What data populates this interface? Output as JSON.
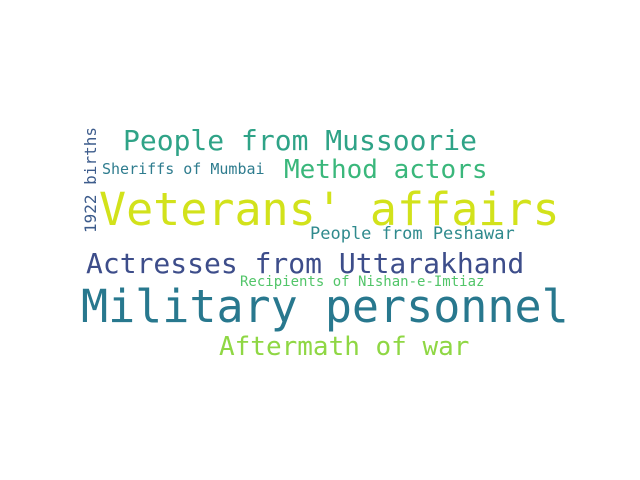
{
  "words": [
    {
      "text": "People from Mussoorie",
      "color": "#2fa387"
    },
    {
      "text": "Sheriffs of Mumbai",
      "color": "#2e7c8e"
    },
    {
      "text": "Method actors",
      "color": "#3ab77b"
    },
    {
      "text": "1922 births",
      "color": "#3d5c8c"
    },
    {
      "text": "Veterans' affairs",
      "color": "#d2e21b"
    },
    {
      "text": "People from Peshawar",
      "color": "#2f8a8d"
    },
    {
      "text": "Actresses from Uttarakhand",
      "color": "#3d4d8a"
    },
    {
      "text": "Recipients of Nishan-e-Imtiaz",
      "color": "#52c569"
    },
    {
      "text": "Military personnel",
      "color": "#28788e"
    },
    {
      "text": "Aftermath of war",
      "color": "#8fd744"
    }
  ]
}
